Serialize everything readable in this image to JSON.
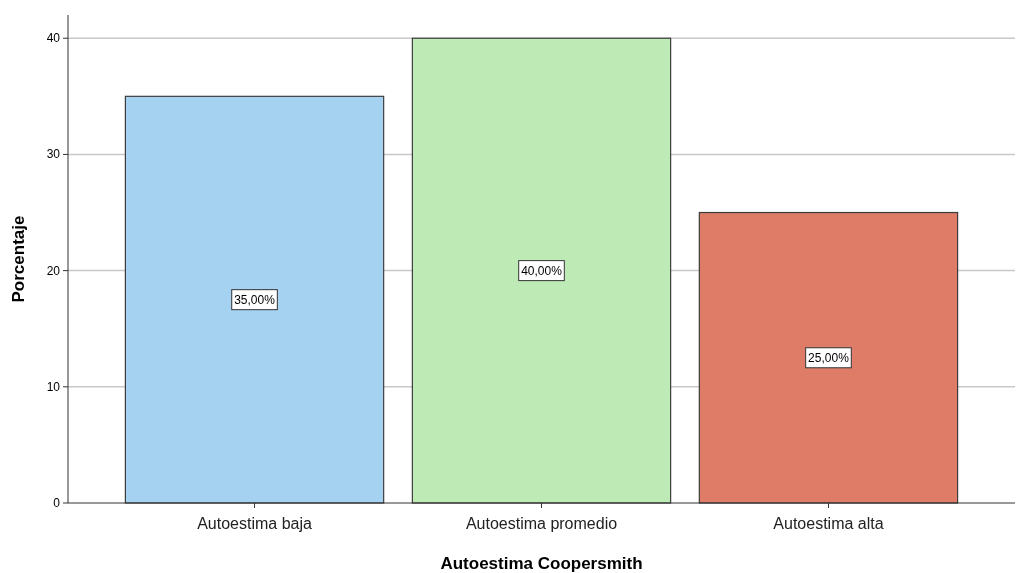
{
  "chart_data": {
    "type": "bar",
    "xlabel": "Autoestima Coopersmith",
    "ylabel": "Porcentaje",
    "categories": [
      "Autoestima baja",
      "Autoestima promedio",
      "Autoestima alta"
    ],
    "values": [
      35,
      40,
      25
    ],
    "colors": [
      "#a6d2f2",
      "#bdeab5",
      "#de7c67"
    ],
    "value_labels": [
      "35,00%",
      "40,00%",
      "25,00%"
    ],
    "ylim": [
      0,
      42
    ],
    "yticks": [
      0,
      10,
      20,
      30,
      40
    ],
    "grid": "y"
  }
}
